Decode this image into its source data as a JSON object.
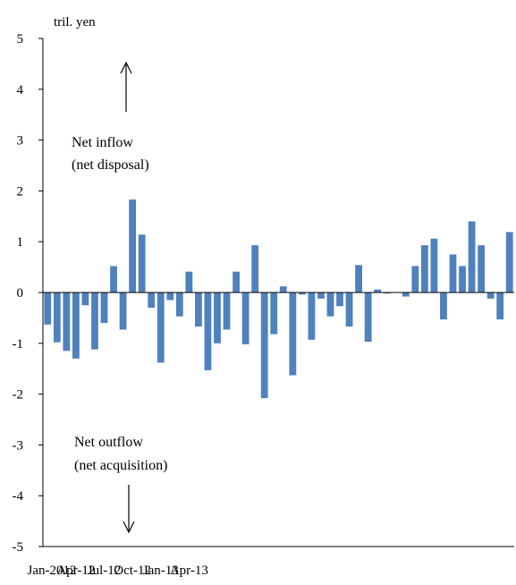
{
  "chart_data": {
    "type": "bar",
    "unit_label": "tril. yen",
    "title": "",
    "xlabel": "",
    "ylabel": "",
    "ylim": [
      -5,
      5
    ],
    "yticks": [
      5,
      4,
      3,
      2,
      1,
      0,
      -1,
      -2,
      -3,
      -4,
      -5
    ],
    "xtick_labels": [
      "Jan-2012",
      "Apr-12",
      "Jul-12",
      "Oct-12",
      "Jan-13",
      "Apr-13"
    ],
    "bar_color": "#4f81bd",
    "grid": false,
    "legend": "none",
    "values": [
      -0.63,
      -0.98,
      -1.15,
      -1.3,
      -0.25,
      -1.12,
      -0.6,
      0.52,
      -0.73,
      1.83,
      1.14,
      -0.3,
      -1.38,
      -0.15,
      -0.47,
      0.41,
      -0.67,
      -1.53,
      -1.0,
      -0.73,
      0.41,
      -1.02,
      0.93,
      -2.08,
      -0.82,
      0.12,
      -1.63,
      -0.04,
      -0.93,
      -0.12,
      -0.47,
      -0.27,
      -0.67,
      0.54,
      -0.97,
      0.06,
      -0.02,
      0.0,
      -0.08,
      0.52,
      0.93,
      1.06,
      -0.53,
      0.75,
      0.52,
      1.4,
      0.93,
      -0.12,
      -0.53,
      1.19
    ],
    "annotations": {
      "inflow_line1": "Net inflow",
      "inflow_line2": "(net disposal)",
      "outflow_line1": "Net outflow",
      "outflow_line2": "(net acquisition)"
    }
  }
}
